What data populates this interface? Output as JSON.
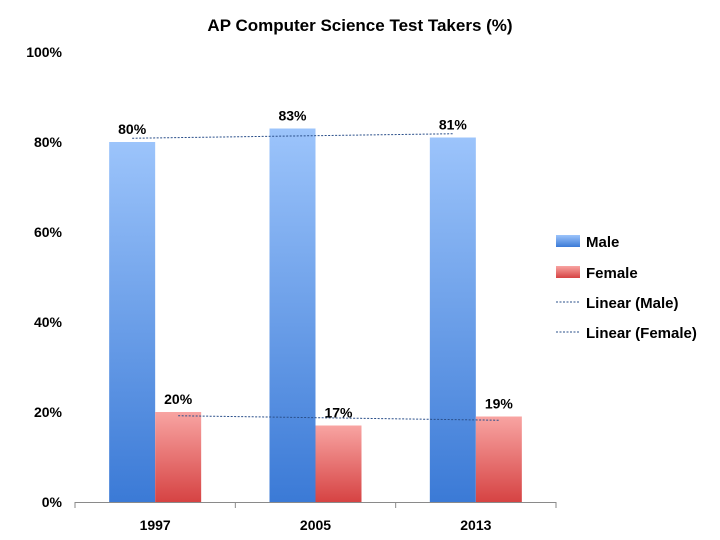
{
  "chart_data": {
    "type": "bar",
    "title": "AP Computer Science Test Takers (%)",
    "xlabel": "",
    "ylabel": "",
    "categories": [
      "1997",
      "2005",
      "2013"
    ],
    "series": [
      {
        "name": "Male",
        "values": [
          80,
          83,
          81
        ],
        "labels": [
          "80%",
          "83%",
          "81%"
        ],
        "color_top": "#9cc4fb",
        "color_bottom": "#3b7ad6"
      },
      {
        "name": "Female",
        "values": [
          20,
          17,
          19
        ],
        "labels": [
          "20%",
          "17%",
          "19%"
        ],
        "color_top": "#f8a4a2",
        "color_bottom": "#d64343"
      }
    ],
    "trendlines": [
      {
        "name": "Linear (Male)",
        "series": "Male",
        "color": "#2a4f8a"
      },
      {
        "name": "Linear (Female)",
        "series": "Female",
        "color": "#2a4f8a"
      }
    ],
    "ylim": [
      0,
      100
    ],
    "yticks": [
      0,
      20,
      40,
      60,
      80,
      100
    ],
    "ytick_labels": [
      "0%",
      "20%",
      "40%",
      "60%",
      "80%",
      "100%"
    ],
    "grid": false,
    "legend_position": "right"
  }
}
